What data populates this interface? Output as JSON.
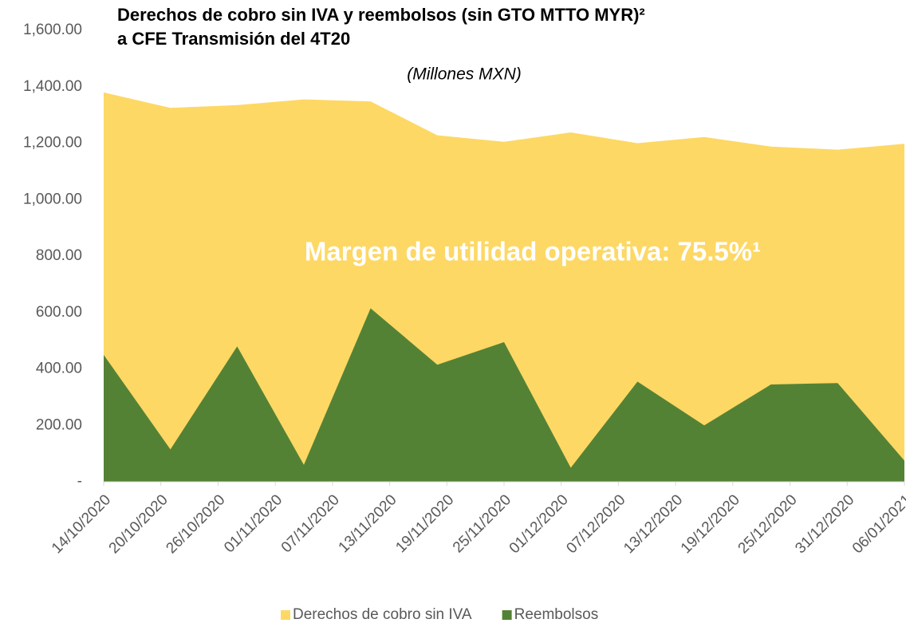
{
  "chart_data": {
    "type": "area",
    "title": [
      "Derechos de cobro sin IVA y reembolsos (sin GTO MTTO MYR)²",
      "a CFE Transmisión del 4T20"
    ],
    "subtitle": "(Millones MXN)",
    "annotation": "Margen de utilidad operativa: 75.5%¹",
    "x": [
      "14/10/2020",
      "21/10/2020",
      "28/10/2020",
      "04/11/2020",
      "11/11/2020",
      "18/11/2020",
      "25/11/2020",
      "02/12/2020",
      "09/12/2020",
      "16/12/2020",
      "23/12/2020",
      "30/12/2020",
      "06/01/2021"
    ],
    "series": [
      {
        "name": "Derechos de cobro sin IVA",
        "color": "#fdd865",
        "values": [
          1380,
          1325,
          1335,
          1355,
          1348,
          1228,
          1205,
          1238,
          1200,
          1222,
          1188,
          1177,
          1198
        ]
      },
      {
        "name": "Reembolsos",
        "color": "#548235",
        "values": [
          450,
          115,
          480,
          60,
          615,
          415,
          495,
          50,
          355,
          200,
          345,
          350,
          75
        ]
      }
    ],
    "xlim": [
      "14/10/2020",
      "06/01/2021"
    ],
    "xticks": [
      "14/10/2020",
      "20/10/2020",
      "26/10/2020",
      "01/11/2020",
      "07/11/2020",
      "13/11/2020",
      "19/11/2020",
      "25/11/2020",
      "01/12/2020",
      "07/12/2020",
      "13/12/2020",
      "19/12/2020",
      "25/12/2020",
      "31/12/2020",
      "06/01/2021"
    ],
    "ylim": [
      0,
      1600
    ],
    "yticks": [
      {
        "value": 0,
        "label": "-"
      },
      {
        "value": 200,
        "label": "200.00"
      },
      {
        "value": 400,
        "label": "400.00"
      },
      {
        "value": 600,
        "label": "600.00"
      },
      {
        "value": 800,
        "label": "800.00"
      },
      {
        "value": 1000,
        "label": "1,000.00"
      },
      {
        "value": 1200,
        "label": "1,200.00"
      },
      {
        "value": 1400,
        "label": "1,400.00"
      },
      {
        "value": 1600,
        "label": "1,600.00"
      }
    ],
    "legend": "bottom"
  }
}
